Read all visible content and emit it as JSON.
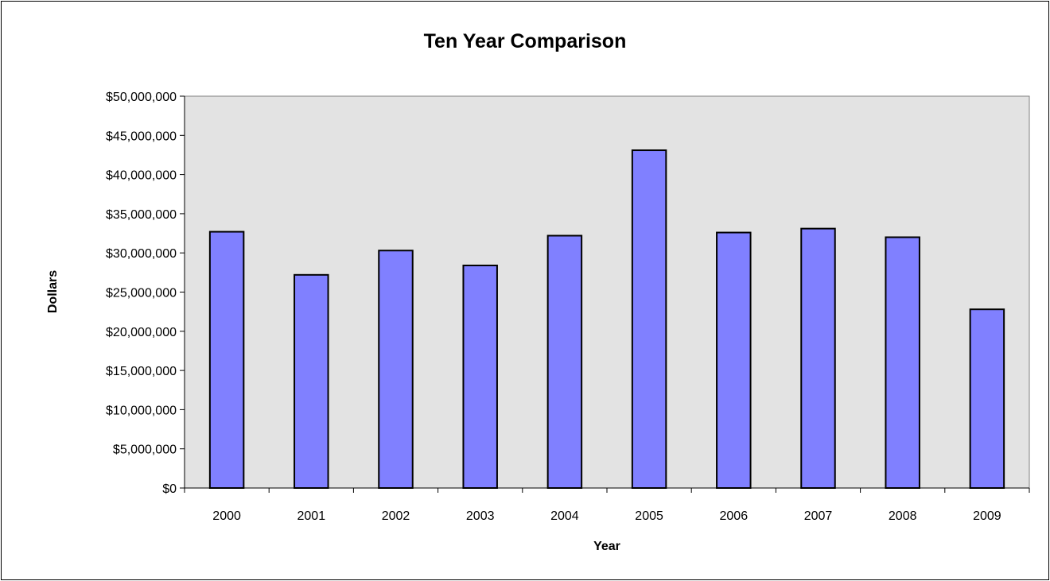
{
  "chart_data": {
    "type": "bar",
    "title": "Ten Year Comparison",
    "xlabel": "Year",
    "ylabel": "Dollars",
    "categories": [
      "2000",
      "2001",
      "2002",
      "2003",
      "2004",
      "2005",
      "2006",
      "2007",
      "2008",
      "2009"
    ],
    "values": [
      32700000,
      27200000,
      30300000,
      28400000,
      32200000,
      43100000,
      32600000,
      33100000,
      32000000,
      22800000
    ],
    "ylim": [
      0,
      50000000
    ],
    "yticks": [
      0,
      5000000,
      10000000,
      15000000,
      20000000,
      25000000,
      30000000,
      35000000,
      40000000,
      45000000,
      50000000
    ],
    "ytick_labels": [
      "$0",
      "$5,000,000",
      "$10,000,000",
      "$15,000,000",
      "$20,000,000",
      "$25,000,000",
      "$30,000,000",
      "$35,000,000",
      "$40,000,000",
      "$45,000,000",
      "$50,000,000"
    ],
    "grid": false,
    "legend": "none",
    "colors": {
      "bar": "#8080ff",
      "plot_background": "#e3e3e3"
    }
  }
}
